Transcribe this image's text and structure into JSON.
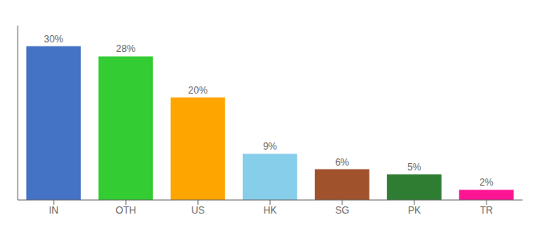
{
  "chart_data": {
    "type": "bar",
    "categories": [
      "IN",
      "OTH",
      "US",
      "HK",
      "SG",
      "PK",
      "TR"
    ],
    "values": [
      30,
      28,
      20,
      9,
      6,
      5,
      2
    ],
    "value_labels": [
      "30%",
      "28%",
      "20%",
      "9%",
      "6%",
      "5%",
      "2%"
    ],
    "colors": [
      "#4472C4",
      "#33CC33",
      "#FFA500",
      "#87CEEB",
      "#A0522D",
      "#2E7D32",
      "#FF1493"
    ],
    "ylim": [
      0,
      34
    ],
    "data_labels": true,
    "tick_labels": "x",
    "grid": false
  }
}
